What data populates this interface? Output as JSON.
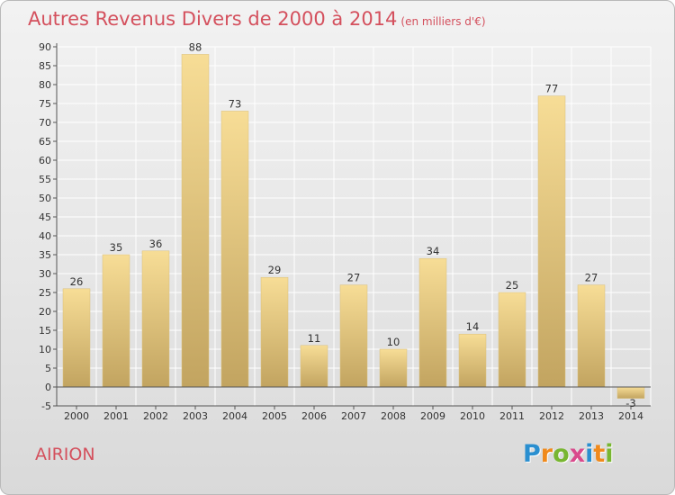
{
  "title": "Autres Revenus Divers de 2000 à 2014",
  "subtitle": "(en milliers d'€)",
  "location": "AIRION",
  "logo": {
    "text": "Proxiti",
    "letters": [
      {
        "ch": "P",
        "color": "#2a8fd0"
      },
      {
        "ch": "r",
        "color": "#f08a1c"
      },
      {
        "ch": "o",
        "color": "#78b631"
      },
      {
        "ch": "x",
        "color": "#d94a8c"
      },
      {
        "ch": "i",
        "color": "#2a8fd0"
      },
      {
        "ch": "t",
        "color": "#f08a1c"
      },
      {
        "ch": "i",
        "color": "#78b631"
      }
    ]
  },
  "colors": {
    "title": "#d4505d",
    "bar_light": "#f7dd96",
    "bar_dark": "#c2a460",
    "grid": "#ffffff",
    "axis": "#555555"
  },
  "chart_data": {
    "type": "bar",
    "categories": [
      "2000",
      "2001",
      "2002",
      "2003",
      "2004",
      "2005",
      "2006",
      "2007",
      "2008",
      "2009",
      "2010",
      "2011",
      "2012",
      "2013",
      "2014"
    ],
    "values": [
      26,
      35,
      36,
      88,
      73,
      29,
      11,
      27,
      10,
      34,
      14,
      25,
      77,
      27,
      -3
    ],
    "value_labels": [
      "26",
      "35",
      "36",
      "88",
      "73",
      "29",
      "11",
      "27",
      "10",
      "34",
      "14",
      "25",
      "77",
      "27",
      "-3"
    ],
    "title": "Autres Revenus Divers de 2000 à 2014",
    "xlabel": "",
    "ylabel": "",
    "ylim": [
      -5,
      90
    ],
    "yticks": [
      -5,
      0,
      5,
      10,
      15,
      20,
      25,
      30,
      35,
      40,
      45,
      50,
      55,
      60,
      65,
      70,
      75,
      80,
      85,
      90
    ],
    "grid": true,
    "legend": "none"
  }
}
